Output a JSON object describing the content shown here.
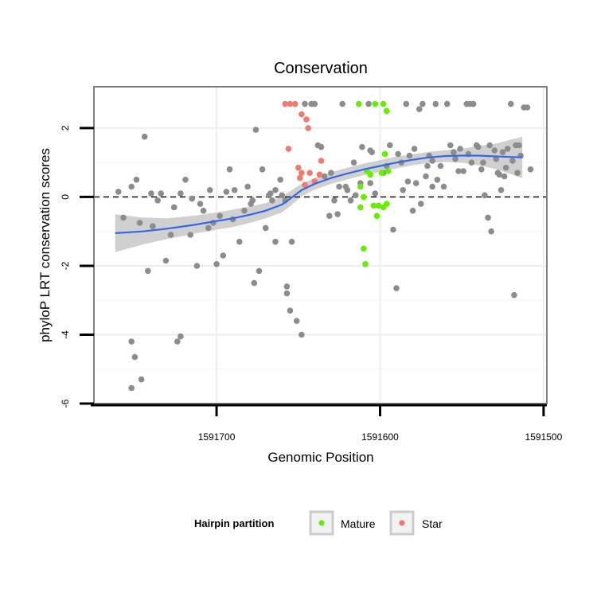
{
  "chart_data": {
    "type": "scatter",
    "title": "Conservation",
    "xlabel": "Genomic Position",
    "ylabel": "phyloP LRT conservation scores",
    "x_reversed": true,
    "xlim": [
      1591775,
      1591498
    ],
    "ylim": [
      -6,
      3.2
    ],
    "x_ticks": [
      1591700,
      1591600,
      1591500
    ],
    "x_tick_labels": [
      "1591700",
      "1591600",
      "1591500"
    ],
    "y_ticks": [
      -6,
      -4,
      -2,
      0,
      2
    ],
    "y_tick_labels": [
      "-6",
      "-4",
      "-2",
      "0",
      "2"
    ],
    "reference_line": {
      "y": 0,
      "style": "dashed",
      "color": "#000000"
    },
    "grid": true,
    "legend": {
      "title": "Hairpin partition",
      "position": "bottom",
      "entries": [
        {
          "label": "Mature",
          "color": "#66ee00"
        },
        {
          "label": "Star",
          "color": "#f07a6e"
        }
      ]
    },
    "colors": {
      "other": "#8c8c8c",
      "mature": "#66ee00",
      "star": "#f07a6e",
      "smooth_line": "#3366ee",
      "smooth_band": "#c8c8c8",
      "panel_border": "#7f7f7f",
      "grid": "#eeeeee"
    },
    "smooth": {
      "x": [
        1591762,
        1591745,
        1591730,
        1591715,
        1591700,
        1591690,
        1591680,
        1591670,
        1591660,
        1591655,
        1591648,
        1591640,
        1591630,
        1591620,
        1591610,
        1591600,
        1591590,
        1591580,
        1591570,
        1591560,
        1591550,
        1591540,
        1591530,
        1591525,
        1591513
      ],
      "y": [
        -1.05,
        -1.0,
        -0.92,
        -0.82,
        -0.7,
        -0.62,
        -0.52,
        -0.4,
        -0.22,
        -0.05,
        0.2,
        0.38,
        0.55,
        0.68,
        0.8,
        0.9,
        1.0,
        1.08,
        1.15,
        1.19,
        1.2,
        1.2,
        1.18,
        1.17,
        1.15
      ],
      "lower": [
        -1.6,
        -1.38,
        -1.22,
        -1.08,
        -0.95,
        -0.87,
        -0.76,
        -0.62,
        -0.45,
        -0.27,
        0.02,
        0.21,
        0.38,
        0.51,
        0.63,
        0.73,
        0.83,
        0.92,
        0.99,
        1.02,
        1.0,
        0.92,
        0.82,
        0.74,
        0.55
      ],
      "upper": [
        -0.5,
        -0.6,
        -0.62,
        -0.55,
        -0.45,
        -0.37,
        -0.28,
        -0.18,
        0.01,
        0.17,
        0.38,
        0.55,
        0.72,
        0.85,
        0.97,
        1.07,
        1.17,
        1.24,
        1.31,
        1.36,
        1.4,
        1.48,
        1.54,
        1.6,
        1.75
      ]
    },
    "series": [
      {
        "group": "Other",
        "points": [
          [
            1591760,
            0.15
          ],
          [
            1591757,
            -0.6
          ],
          [
            1591752,
            0.3
          ],
          [
            1591749,
            0.5
          ],
          [
            1591747,
            -0.75
          ],
          [
            1591744,
            1.75
          ],
          [
            1591742,
            -2.15
          ],
          [
            1591739,
            -0.85
          ],
          [
            1591736,
            -0.1
          ],
          [
            1591731,
            -1.85
          ],
          [
            1591726,
            -0.3
          ],
          [
            1591722,
            0.1
          ],
          [
            1591719,
            0.5
          ],
          [
            1591716,
            -1.1
          ],
          [
            1591712,
            -2.0
          ],
          [
            1591708,
            -0.4
          ],
          [
            1591705,
            -0.9
          ],
          [
            1591700,
            -1.95
          ],
          [
            1591696,
            -1.7
          ],
          [
            1591692,
            0.8
          ],
          [
            1591689,
            0.2
          ],
          [
            1591686,
            -1.3
          ],
          [
            1591683,
            -0.4
          ],
          [
            1591679,
            -0.2
          ],
          [
            1591677,
            -2.5
          ],
          [
            1591676,
            1.95
          ],
          [
            1591674,
            -2.15
          ],
          [
            1591672,
            0.8
          ],
          [
            1591668,
            0.05
          ],
          [
            1591664,
            -1.3
          ],
          [
            1591660,
            0.05
          ],
          [
            1591657,
            -2.8
          ],
          [
            1591655,
            -3.3
          ],
          [
            1591651,
            -3.6
          ],
          [
            1591648,
            -4.0
          ],
          [
            1591724,
            -4.2
          ],
          [
            1591722,
            -4.05
          ],
          [
            1591752,
            -4.2
          ],
          [
            1591750,
            -4.65
          ],
          [
            1591746,
            -5.3
          ],
          [
            1591752,
            -5.55
          ],
          [
            1591740,
            0.1
          ],
          [
            1591734,
            0.1
          ],
          [
            1591728,
            -1.1
          ],
          [
            1591715,
            -0.05
          ],
          [
            1591710,
            -0.2
          ],
          [
            1591704,
            0.2
          ],
          [
            1591702,
            -0.75
          ],
          [
            1591698,
            -0.55
          ],
          [
            1591694,
            0.15
          ],
          [
            1591690,
            -0.65
          ],
          [
            1591681,
            0.3
          ],
          [
            1591678,
            -0.1
          ],
          [
            1591670,
            -0.9
          ],
          [
            1591666,
            -0.1
          ],
          [
            1591658,
            -0.1
          ],
          [
            1591657,
            -2.6
          ],
          [
            1591654,
            -1.3
          ],
          [
            1591646,
            2.7
          ],
          [
            1591642,
            2.7
          ],
          [
            1591640,
            2.7
          ],
          [
            1591638,
            1.5
          ],
          [
            1591636,
            1.45
          ],
          [
            1591634,
            0.6
          ],
          [
            1591631,
            -0.55
          ],
          [
            1591628,
            -0.1
          ],
          [
            1591626,
            -0.5
          ],
          [
            1591625,
            0.3
          ],
          [
            1591623,
            2.7
          ],
          [
            1591620,
            0.2
          ],
          [
            1591618,
            -0.1
          ],
          [
            1591615,
            0.05
          ],
          [
            1591607,
            2.7
          ],
          [
            1591606,
            0.4
          ],
          [
            1591605,
            1.3
          ],
          [
            1591603,
            0.1
          ],
          [
            1591598,
            0.7
          ],
          [
            1591596,
            0.9
          ],
          [
            1591594,
            1.5
          ],
          [
            1591592,
            -0.95
          ],
          [
            1591590,
            -2.65
          ],
          [
            1591586,
            0.2
          ],
          [
            1591583,
            0.45
          ],
          [
            1591580,
            -0.4
          ],
          [
            1591578,
            0.4
          ],
          [
            1591576,
            2.55
          ],
          [
            1591574,
            2.7
          ],
          [
            1591572,
            0.6
          ],
          [
            1591570,
            1.2
          ],
          [
            1591568,
            0.3
          ],
          [
            1591566,
            2.7
          ],
          [
            1591563,
            0.9
          ],
          [
            1591561,
            0.3
          ],
          [
            1591559,
            2.7
          ],
          [
            1591557,
            1.5
          ],
          [
            1591555,
            1.3
          ],
          [
            1591552,
            0.75
          ],
          [
            1591549,
            0.75
          ],
          [
            1591547,
            2.7
          ],
          [
            1591545,
            2.7
          ],
          [
            1591543,
            2.7
          ],
          [
            1591541,
            1.5
          ],
          [
            1591538,
            0.8
          ],
          [
            1591536,
            0.05
          ],
          [
            1591534,
            -0.6
          ],
          [
            1591532,
            -1.0
          ],
          [
            1591530,
            1.35
          ],
          [
            1591528,
            0.7
          ],
          [
            1591526,
            0.2
          ],
          [
            1591524,
            0.6
          ],
          [
            1591522,
            1.4
          ],
          [
            1591520,
            2.7
          ],
          [
            1591518,
            -2.85
          ],
          [
            1591516,
            0.7
          ],
          [
            1591514,
            1.2
          ],
          [
            1591512,
            2.6
          ],
          [
            1591510,
            2.6
          ],
          [
            1591508,
            0.8
          ],
          [
            1591584,
            2.7
          ],
          [
            1591582,
            1.2
          ],
          [
            1591579,
            1.4
          ],
          [
            1591575,
            -0.2
          ],
          [
            1591571,
            0.9
          ],
          [
            1591568,
            1.05
          ],
          [
            1591565,
            0.5
          ],
          [
            1591554,
            1.1
          ],
          [
            1591551,
            1.4
          ],
          [
            1591546,
            1.25
          ],
          [
            1591544,
            1.0
          ],
          [
            1591540,
            1.45
          ],
          [
            1591537,
            1.0
          ],
          [
            1591533,
            1.5
          ],
          [
            1591529,
            1.1
          ],
          [
            1591527,
            0.65
          ],
          [
            1591525,
            1.3
          ],
          [
            1591523,
            0.85
          ],
          [
            1591519,
            1.05
          ],
          [
            1591517,
            1.5
          ],
          [
            1591515,
            1.5
          ],
          [
            1591606,
            1.35
          ],
          [
            1591612,
            0.4
          ],
          [
            1591616,
            1.0
          ],
          [
            1591621,
            0.3
          ],
          [
            1591630,
            0.7
          ],
          [
            1591587,
            1.0
          ],
          [
            1591589,
            1.25
          ],
          [
            1591611,
            1.45
          ],
          [
            1591661,
            0.5
          ],
          [
            1591664,
            0.2
          ],
          [
            1591667,
            0.1
          ]
        ]
      },
      {
        "group": "Mature",
        "points": [
          [
            1591613,
            2.7
          ],
          [
            1591603,
            2.7
          ],
          [
            1591598,
            2.7
          ],
          [
            1591596,
            2.5
          ],
          [
            1591612,
            0.3
          ],
          [
            1591612,
            -0.3
          ],
          [
            1591610,
            -1.5
          ],
          [
            1591609,
            -1.95
          ],
          [
            1591608,
            0.75
          ],
          [
            1591606,
            0.65
          ],
          [
            1591604,
            -0.25
          ],
          [
            1591602,
            -0.55
          ],
          [
            1591601,
            -0.25
          ],
          [
            1591599,
            0.7
          ],
          [
            1591598,
            -0.3
          ],
          [
            1591596,
            -0.2
          ],
          [
            1591595,
            0.75
          ],
          [
            1591597,
            1.25
          ],
          [
            1591610,
            0.0
          ]
        ]
      },
      {
        "group": "Star",
        "points": [
          [
            1591658,
            2.7
          ],
          [
            1591655,
            2.7
          ],
          [
            1591652,
            2.7
          ],
          [
            1591648,
            2.4
          ],
          [
            1591645,
            2.25
          ],
          [
            1591644,
            2.0
          ],
          [
            1591656,
            1.4
          ],
          [
            1591650,
            0.85
          ],
          [
            1591648,
            0.7
          ],
          [
            1591649,
            0.55
          ],
          [
            1591646,
            0.35
          ],
          [
            1591643,
            0.7
          ],
          [
            1591640,
            0.45
          ],
          [
            1591636,
            1.05
          ],
          [
            1591637,
            0.65
          ]
        ]
      }
    ]
  }
}
